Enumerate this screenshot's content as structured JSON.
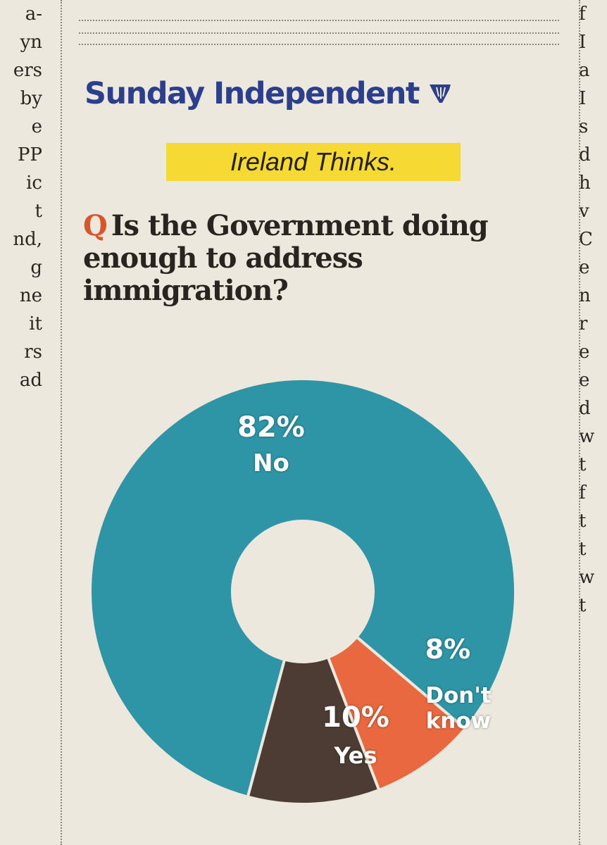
{
  "left_column_fragments": [
    "a-",
    "yn",
    "ers",
    "by",
    "e",
    "PP",
    "ic",
    "t",
    "nd,",
    "g",
    "ne",
    "it",
    "rs",
    "ad"
  ],
  "right_column_fragments": [
    "f",
    "I",
    "a",
    "I",
    "s",
    "d",
    "h",
    "v",
    "C",
    "e",
    "n",
    "r",
    "e",
    "e",
    "d",
    "w",
    "t",
    "f",
    "t",
    "t",
    "w",
    "t"
  ],
  "masthead": {
    "title": "Sunday Independent",
    "logo_icon": "harp-icon",
    "brand_color": "#2b3f8c"
  },
  "tagline": "Ireland Thinks.",
  "question": {
    "marker": "Q",
    "text": "Is the Government doing enough to address immigration?"
  },
  "chart_data": {
    "type": "pie",
    "donut": true,
    "title": "Is the Government doing enough to address immigration?",
    "categories": [
      "No",
      "Don't know",
      "Yes"
    ],
    "values": [
      82,
      8,
      10
    ],
    "value_labels": [
      "82%",
      "8%",
      "10%"
    ],
    "colors": [
      "#2e95a6",
      "#e8683f",
      "#4d3c33"
    ],
    "label_lines": [
      [
        "Don't",
        "know"
      ]
    ]
  }
}
